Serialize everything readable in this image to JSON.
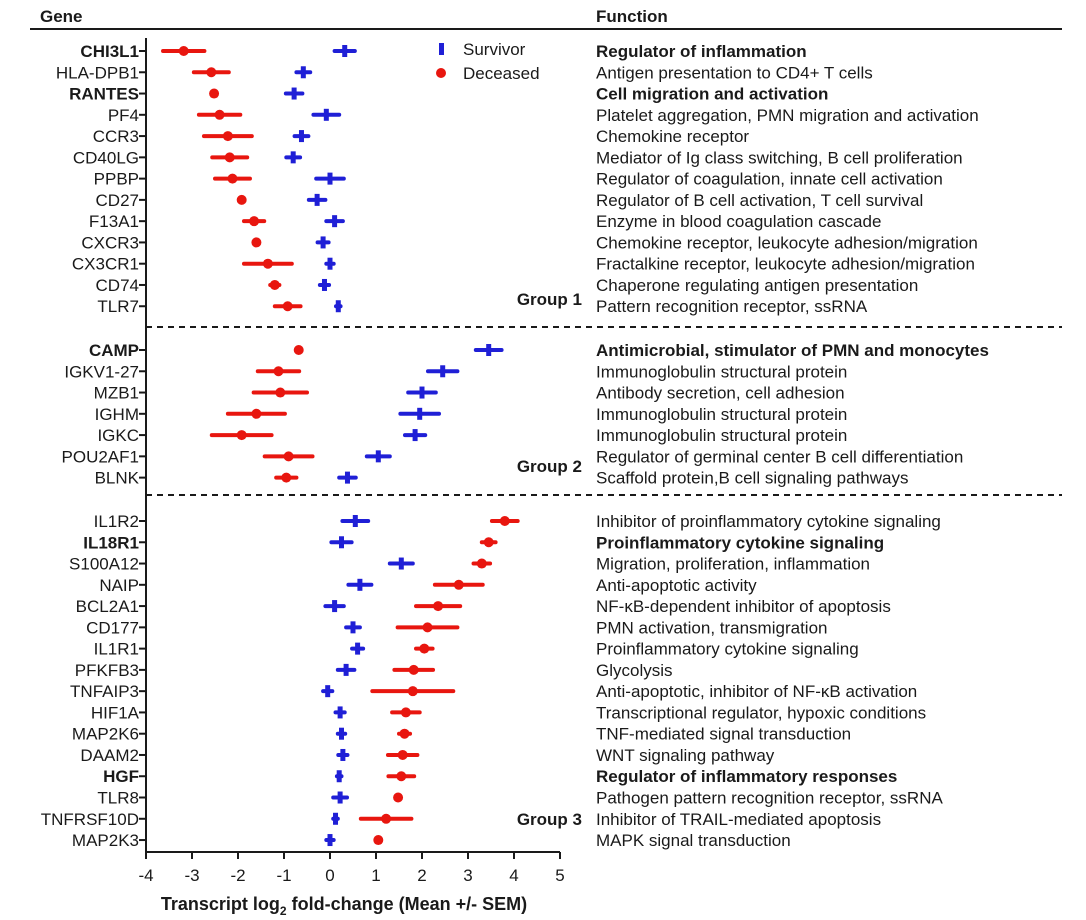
{
  "header": {
    "gene_label": "Gene",
    "function_label": "Function"
  },
  "legend": [
    {
      "label": "Survivor",
      "color": "#1f1fd6"
    },
    {
      "label": "Deceased",
      "color": "#e8160f"
    }
  ],
  "groups": [
    "Group 1",
    "Group 2",
    "Group 3"
  ],
  "colors": {
    "survivor": "#1f1fd6",
    "deceased": "#e8160f",
    "text": "#1a1a1a"
  },
  "chart_data": {
    "type": "scatter",
    "xlabel_main": "Transcript log",
    "xlabel_sub": "2",
    "xlabel_tail": " fold-change (Mean +/- SEM)",
    "xlim": [
      -4,
      5
    ],
    "xticks": [
      "-4",
      "-3",
      "-2",
      "-1",
      "0",
      "1",
      "2",
      "3",
      "4",
      "5"
    ],
    "series": [
      {
        "name": "Survivor"
      },
      {
        "name": "Deceased"
      }
    ],
    "rows": [
      {
        "gene": "CHI3L1",
        "bold": true,
        "group": 1,
        "function": "Regulator of inflammation",
        "survivor": [
          0.32,
          0.22
        ],
        "deceased": [
          -3.18,
          0.45
        ]
      },
      {
        "gene": "HLA-DPB1",
        "bold": false,
        "group": 1,
        "function": "Antigen presentation to CD4+ T cells",
        "survivor": [
          -0.58,
          0.15
        ],
        "deceased": [
          -2.58,
          0.38
        ]
      },
      {
        "gene": "RANTES",
        "bold": true,
        "group": 1,
        "function": "Cell migration and activation",
        "survivor": [
          -0.78,
          0.18
        ],
        "deceased": [
          -2.52,
          0.05
        ]
      },
      {
        "gene": "PF4",
        "bold": false,
        "group": 1,
        "function": "Platelet aggregation, PMN migration and activation",
        "survivor": [
          -0.08,
          0.28
        ],
        "deceased": [
          -2.4,
          0.45
        ]
      },
      {
        "gene": "CCR3",
        "bold": false,
        "group": 1,
        "function": "Chemokine receptor",
        "survivor": [
          -0.62,
          0.15
        ],
        "deceased": [
          -2.22,
          0.52
        ]
      },
      {
        "gene": "CD40LG",
        "bold": false,
        "group": 1,
        "function": "Mediator of Ig class switching, B cell proliferation",
        "survivor": [
          -0.8,
          0.15
        ],
        "deceased": [
          -2.18,
          0.38
        ]
      },
      {
        "gene": "PPBP",
        "bold": false,
        "group": 1,
        "function": "Regulator of coagulation, innate cell activation",
        "survivor": [
          0.0,
          0.3
        ],
        "deceased": [
          -2.12,
          0.38
        ]
      },
      {
        "gene": "CD27",
        "bold": false,
        "group": 1,
        "function": "Regulator of B cell activation, T cell survival",
        "survivor": [
          -0.28,
          0.18
        ],
        "deceased": [
          -1.92,
          0.05
        ]
      },
      {
        "gene": "F13A1",
        "bold": false,
        "group": 1,
        "function": "Enzyme in blood coagulation cascade",
        "survivor": [
          0.1,
          0.18
        ],
        "deceased": [
          -1.65,
          0.22
        ]
      },
      {
        "gene": "CXCR3",
        "bold": false,
        "group": 1,
        "function": "Chemokine receptor, leukocyte adhesion/migration",
        "survivor": [
          -0.15,
          0.12
        ],
        "deceased": [
          -1.6,
          0.05
        ]
      },
      {
        "gene": "CX3CR1",
        "bold": false,
        "group": 1,
        "function": "Fractalkine receptor, leukocyte adhesion/migration",
        "survivor": [
          0.0,
          0.08
        ],
        "deceased": [
          -1.35,
          0.52
        ]
      },
      {
        "gene": "CD74",
        "bold": false,
        "group": 1,
        "function": "Chaperone regulating antigen presentation",
        "survivor": [
          -0.12,
          0.1
        ],
        "deceased": [
          -1.2,
          0.1
        ]
      },
      {
        "gene": "TLR7",
        "bold": false,
        "group": 1,
        "function": "Pattern recognition receptor, ssRNA",
        "survivor": [
          0.18,
          0.05
        ],
        "deceased": [
          -0.92,
          0.28
        ]
      },
      {
        "gene": "CAMP",
        "bold": true,
        "group": 2,
        "function": "Antimicrobial, stimulator of PMN and monocytes",
        "survivor": [
          3.45,
          0.28
        ],
        "deceased": [
          -0.68,
          0.05
        ]
      },
      {
        "gene": "IGKV1-27",
        "bold": false,
        "group": 2,
        "function": "Immunoglobulin structural protein",
        "survivor": [
          2.45,
          0.32
        ],
        "deceased": [
          -1.12,
          0.45
        ]
      },
      {
        "gene": "MZB1",
        "bold": false,
        "group": 2,
        "function": "Antibody secretion, cell adhesion",
        "survivor": [
          2.0,
          0.3
        ],
        "deceased": [
          -1.08,
          0.58
        ]
      },
      {
        "gene": "IGHM",
        "bold": false,
        "group": 2,
        "function": "Immunoglobulin structural protein",
        "survivor": [
          1.95,
          0.42
        ],
        "deceased": [
          -1.6,
          0.62
        ]
      },
      {
        "gene": "IGKC",
        "bold": false,
        "group": 2,
        "function": "Immunoglobulin structural protein",
        "survivor": [
          1.85,
          0.22
        ],
        "deceased": [
          -1.92,
          0.65
        ]
      },
      {
        "gene": "POU2AF1",
        "bold": false,
        "group": 2,
        "function": "Regulator of germinal center B cell differentiation",
        "survivor": [
          1.05,
          0.25
        ],
        "deceased": [
          -0.9,
          0.52
        ]
      },
      {
        "gene": "BLNK",
        "bold": false,
        "group": 2,
        "function": "Scaffold protein,B cell signaling pathways",
        "survivor": [
          0.38,
          0.18
        ],
        "deceased": [
          -0.95,
          0.22
        ]
      },
      {
        "gene": "IL1R2",
        "bold": false,
        "group": 3,
        "function": "Inhibitor of proinflammatory cytokine signaling",
        "survivor": [
          0.55,
          0.28
        ],
        "deceased": [
          3.8,
          0.28
        ]
      },
      {
        "gene": "IL18R1",
        "bold": true,
        "group": 3,
        "function": "Proinflammatory cytokine signaling",
        "survivor": [
          0.25,
          0.22
        ],
        "deceased": [
          3.45,
          0.15
        ]
      },
      {
        "gene": "S100A12",
        "bold": false,
        "group": 3,
        "function": "Migration, proliferation, inflammation",
        "survivor": [
          1.55,
          0.25
        ],
        "deceased": [
          3.3,
          0.18
        ]
      },
      {
        "gene": "NAIP",
        "bold": false,
        "group": 3,
        "function": "Anti-apoptotic activity",
        "survivor": [
          0.65,
          0.25
        ],
        "deceased": [
          2.8,
          0.52
        ]
      },
      {
        "gene": "BCL2A1",
        "bold": false,
        "group": 3,
        "function": "NF-κB-dependent inhibitor of apoptosis",
        "survivor": [
          0.1,
          0.2
        ],
        "deceased": [
          2.35,
          0.48
        ]
      },
      {
        "gene": "CD177",
        "bold": false,
        "group": 3,
        "function": "PMN activation, transmigration",
        "survivor": [
          0.5,
          0.15
        ],
        "deceased": [
          2.12,
          0.65
        ]
      },
      {
        "gene": "IL1R1",
        "bold": false,
        "group": 3,
        "function": "Proinflammatory cytokine signaling",
        "survivor": [
          0.6,
          0.12
        ],
        "deceased": [
          2.05,
          0.18
        ]
      },
      {
        "gene": "PFKFB3",
        "bold": false,
        "group": 3,
        "function": "Glycolysis",
        "survivor": [
          0.35,
          0.18
        ],
        "deceased": [
          1.82,
          0.42
        ]
      },
      {
        "gene": "TNFAIP3",
        "bold": false,
        "group": 3,
        "function": "Anti-apoptotic, inhibitor of NF-κB activation",
        "survivor": [
          -0.05,
          0.1
        ],
        "deceased": [
          1.8,
          0.88
        ]
      },
      {
        "gene": "HIF1A",
        "bold": false,
        "group": 3,
        "function": "Transcriptional regulator, hypoxic conditions",
        "survivor": [
          0.22,
          0.1
        ],
        "deceased": [
          1.65,
          0.3
        ]
      },
      {
        "gene": "MAP2K6",
        "bold": false,
        "group": 3,
        "function": "TNF-mediated signal transduction",
        "survivor": [
          0.25,
          0.08
        ],
        "deceased": [
          1.62,
          0.12
        ]
      },
      {
        "gene": "DAAM2",
        "bold": false,
        "group": 3,
        "function": "WNT signaling pathway",
        "survivor": [
          0.28,
          0.1
        ],
        "deceased": [
          1.58,
          0.32
        ]
      },
      {
        "gene": "HGF",
        "bold": true,
        "group": 3,
        "function": "Regulator of inflammatory responses",
        "survivor": [
          0.2,
          0.05
        ],
        "deceased": [
          1.55,
          0.28
        ]
      },
      {
        "gene": "TLR8",
        "bold": false,
        "group": 3,
        "function": "Pathogen pattern recognition receptor, ssRNA",
        "survivor": [
          0.22,
          0.15
        ],
        "deceased": [
          1.48,
          0.05
        ]
      },
      {
        "gene": "TNFRSF10D",
        "bold": false,
        "group": 3,
        "function": "Inhibitor of TRAIL-mediated apoptosis",
        "survivor": [
          0.12,
          0.05
        ],
        "deceased": [
          1.22,
          0.55
        ]
      },
      {
        "gene": "MAP2K3",
        "bold": false,
        "group": 3,
        "function": "MAPK signal transduction",
        "survivor": [
          0.0,
          0.08
        ],
        "deceased": [
          1.05,
          0.05
        ]
      }
    ]
  }
}
